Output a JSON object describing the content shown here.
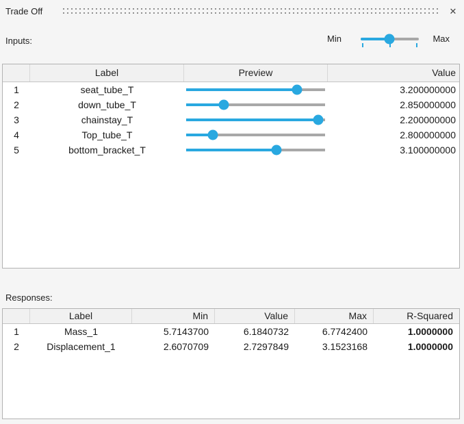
{
  "colors": {
    "accent": "#29a8e0",
    "track_gray": "#a8a8a8"
  },
  "titlebar": {
    "title": "Trade Off",
    "close_glyph": "✕"
  },
  "inputs": {
    "label": "Inputs:",
    "range_slider": {
      "min_label": "Min",
      "max_label": "Max",
      "fraction": 0.49,
      "ticks": [
        0.04,
        0.5,
        0.96
      ]
    },
    "table": {
      "columns": [
        "",
        "Label",
        "Preview",
        "Value"
      ],
      "rows": [
        {
          "num": "1",
          "label": "seat_tube_T",
          "fraction": 0.8,
          "value": "3.200000000"
        },
        {
          "num": "2",
          "label": "down_tube_T",
          "fraction": 0.27,
          "value": "2.850000000"
        },
        {
          "num": "3",
          "label": "chainstay_T",
          "fraction": 0.95,
          "value": "2.200000000"
        },
        {
          "num": "4",
          "label": "Top_tube_T",
          "fraction": 0.19,
          "value": "2.800000000"
        },
        {
          "num": "5",
          "label": "bottom_bracket_T",
          "fraction": 0.65,
          "value": "3.100000000"
        }
      ]
    }
  },
  "responses": {
    "label": "Responses:",
    "table": {
      "columns": [
        "",
        "Label",
        "Min",
        "Value",
        "Max",
        "R-Squared"
      ],
      "rows": [
        {
          "num": "1",
          "label": "Mass_1",
          "min": "5.7143700",
          "value": "6.1840732",
          "max": "6.7742400",
          "r_squared": "1.0000000"
        },
        {
          "num": "2",
          "label": "Displacement_1",
          "min": "2.6070709",
          "value": "2.7297849",
          "max": "3.1523168",
          "r_squared": "1.0000000"
        }
      ]
    }
  }
}
